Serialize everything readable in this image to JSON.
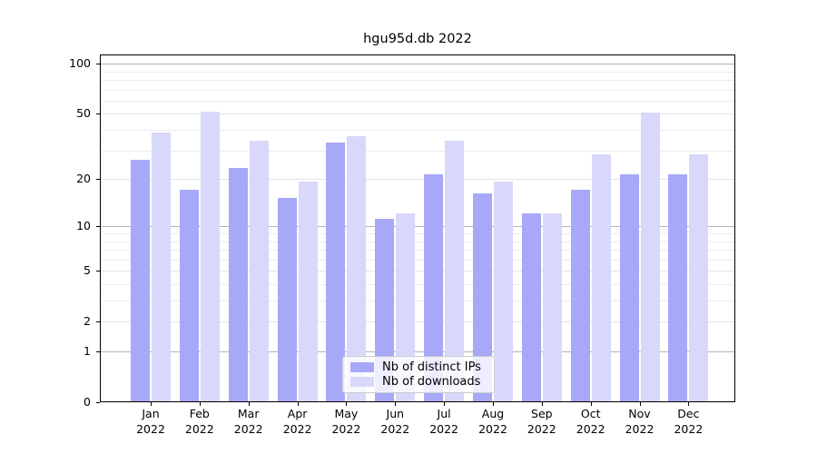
{
  "title": "hgu95d.db 2022",
  "chart_data": {
    "type": "bar",
    "title": "hgu95d.db 2022",
    "categories": [
      "Jan 2022",
      "Feb 2022",
      "Mar 2022",
      "Apr 2022",
      "May 2022",
      "Jun 2022",
      "Jul 2022",
      "Aug 2022",
      "Sep 2022",
      "Oct 2022",
      "Nov 2022",
      "Dec 2022"
    ],
    "series": [
      {
        "name": "Nb of distinct IPs",
        "color": "#a8a8f8",
        "values": [
          26,
          17,
          23,
          15,
          33,
          11,
          21,
          16,
          12,
          17,
          21,
          21
        ]
      },
      {
        "name": "Nb of downloads",
        "color": "#d8d8fa",
        "values": [
          38,
          51,
          34,
          19,
          36,
          12,
          34,
          19,
          12,
          28,
          50,
          28
        ]
      }
    ],
    "y_axis": {
      "scale": "log10(1+x)",
      "ylim": [
        0,
        110
      ],
      "tick_values": [
        100,
        50,
        20,
        10,
        5,
        2,
        1,
        0
      ],
      "tick_labels": [
        "100",
        "50",
        "20",
        "10",
        "5",
        "2",
        "1",
        "0"
      ],
      "gridline_values": [
        1,
        2,
        3,
        4,
        5,
        6,
        7,
        8,
        9,
        10,
        20,
        30,
        40,
        50,
        60,
        70,
        80,
        90,
        100
      ],
      "major_gridline_values": [
        1,
        10,
        100
      ],
      "mid_gridline_values": [
        2,
        5,
        20,
        50
      ]
    },
    "x_axis": {
      "tick_labels_line1": [
        "Jan",
        "Feb",
        "Mar",
        "Apr",
        "May",
        "Jun",
        "Jul",
        "Aug",
        "Sep",
        "Oct",
        "Nov",
        "Dec"
      ],
      "year": "2022"
    },
    "legend": {
      "position": "bottom-center",
      "entries": [
        "Nb of distinct IPs",
        "Nb of downloads"
      ]
    },
    "grid": true,
    "colors": {
      "axis": "#000000",
      "gridline_minor": "#ececec",
      "gridline_major": "#b4b4b4",
      "background": "#ffffff"
    }
  }
}
